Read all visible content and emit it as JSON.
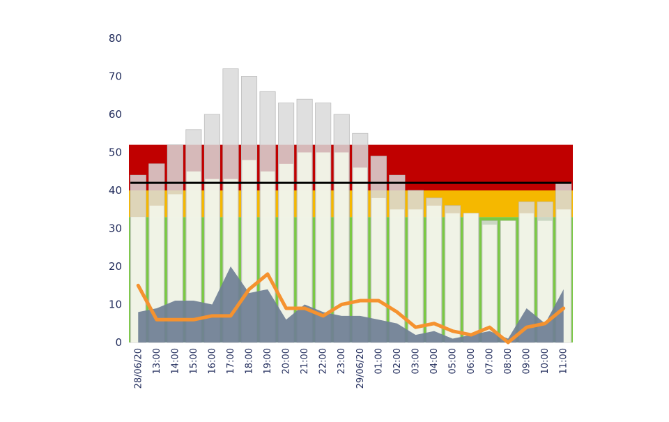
{
  "chart_data": {
    "type": "bar",
    "categories": [
      "28/06/20",
      "13:00",
      "14:00",
      "15:00",
      "16:00",
      "17:00",
      "18:00",
      "19:00",
      "20:00",
      "21:00",
      "22:00",
      "23:00",
      "29/06/20",
      "01:00",
      "02:00",
      "03:00",
      "04:00",
      "05:00",
      "06:00",
      "07:00",
      "08:00",
      "09:00",
      "10:00",
      "11:00"
    ],
    "ylim": [
      0,
      80
    ],
    "yticks": [
      0,
      10,
      20,
      30,
      40,
      50,
      60,
      70,
      80
    ],
    "bands": [
      {
        "from": 0,
        "to": 33,
        "color": "#7ac943"
      },
      {
        "from": 33,
        "to": 40,
        "color": "#f5b800"
      },
      {
        "from": 40,
        "to": 52,
        "color": "#c00000"
      }
    ],
    "reference_line": {
      "value": 42,
      "color": "#000000"
    },
    "series": [
      {
        "type": "bar",
        "color": "#d9d9d9",
        "values": [
          44,
          47,
          52,
          56,
          60,
          72,
          70,
          66,
          63,
          64,
          63,
          60,
          55,
          49,
          44,
          40,
          38,
          36,
          34,
          32,
          32,
          37,
          37,
          42
        ]
      },
      {
        "type": "bar",
        "color": "#f2f5e8",
        "values": [
          33,
          36,
          39,
          45,
          43,
          43,
          48,
          45,
          47,
          50,
          50,
          50,
          46,
          38,
          35,
          35,
          36,
          34,
          34,
          31,
          32,
          34,
          32,
          35
        ]
      },
      {
        "type": "area",
        "color": "#6f7f95",
        "values": [
          8,
          9,
          11,
          11,
          10,
          20,
          13,
          14,
          6,
          10,
          8,
          7,
          7,
          6,
          5,
          2,
          3,
          1,
          2,
          3,
          1,
          9,
          5,
          14
        ]
      },
      {
        "type": "line",
        "color": "#f5922f",
        "values": [
          15,
          6,
          6,
          6,
          7,
          7,
          14,
          18,
          9,
          9,
          7,
          10,
          11,
          11,
          8,
          4,
          5,
          3,
          2,
          4,
          0,
          4,
          5,
          9
        ]
      }
    ]
  }
}
